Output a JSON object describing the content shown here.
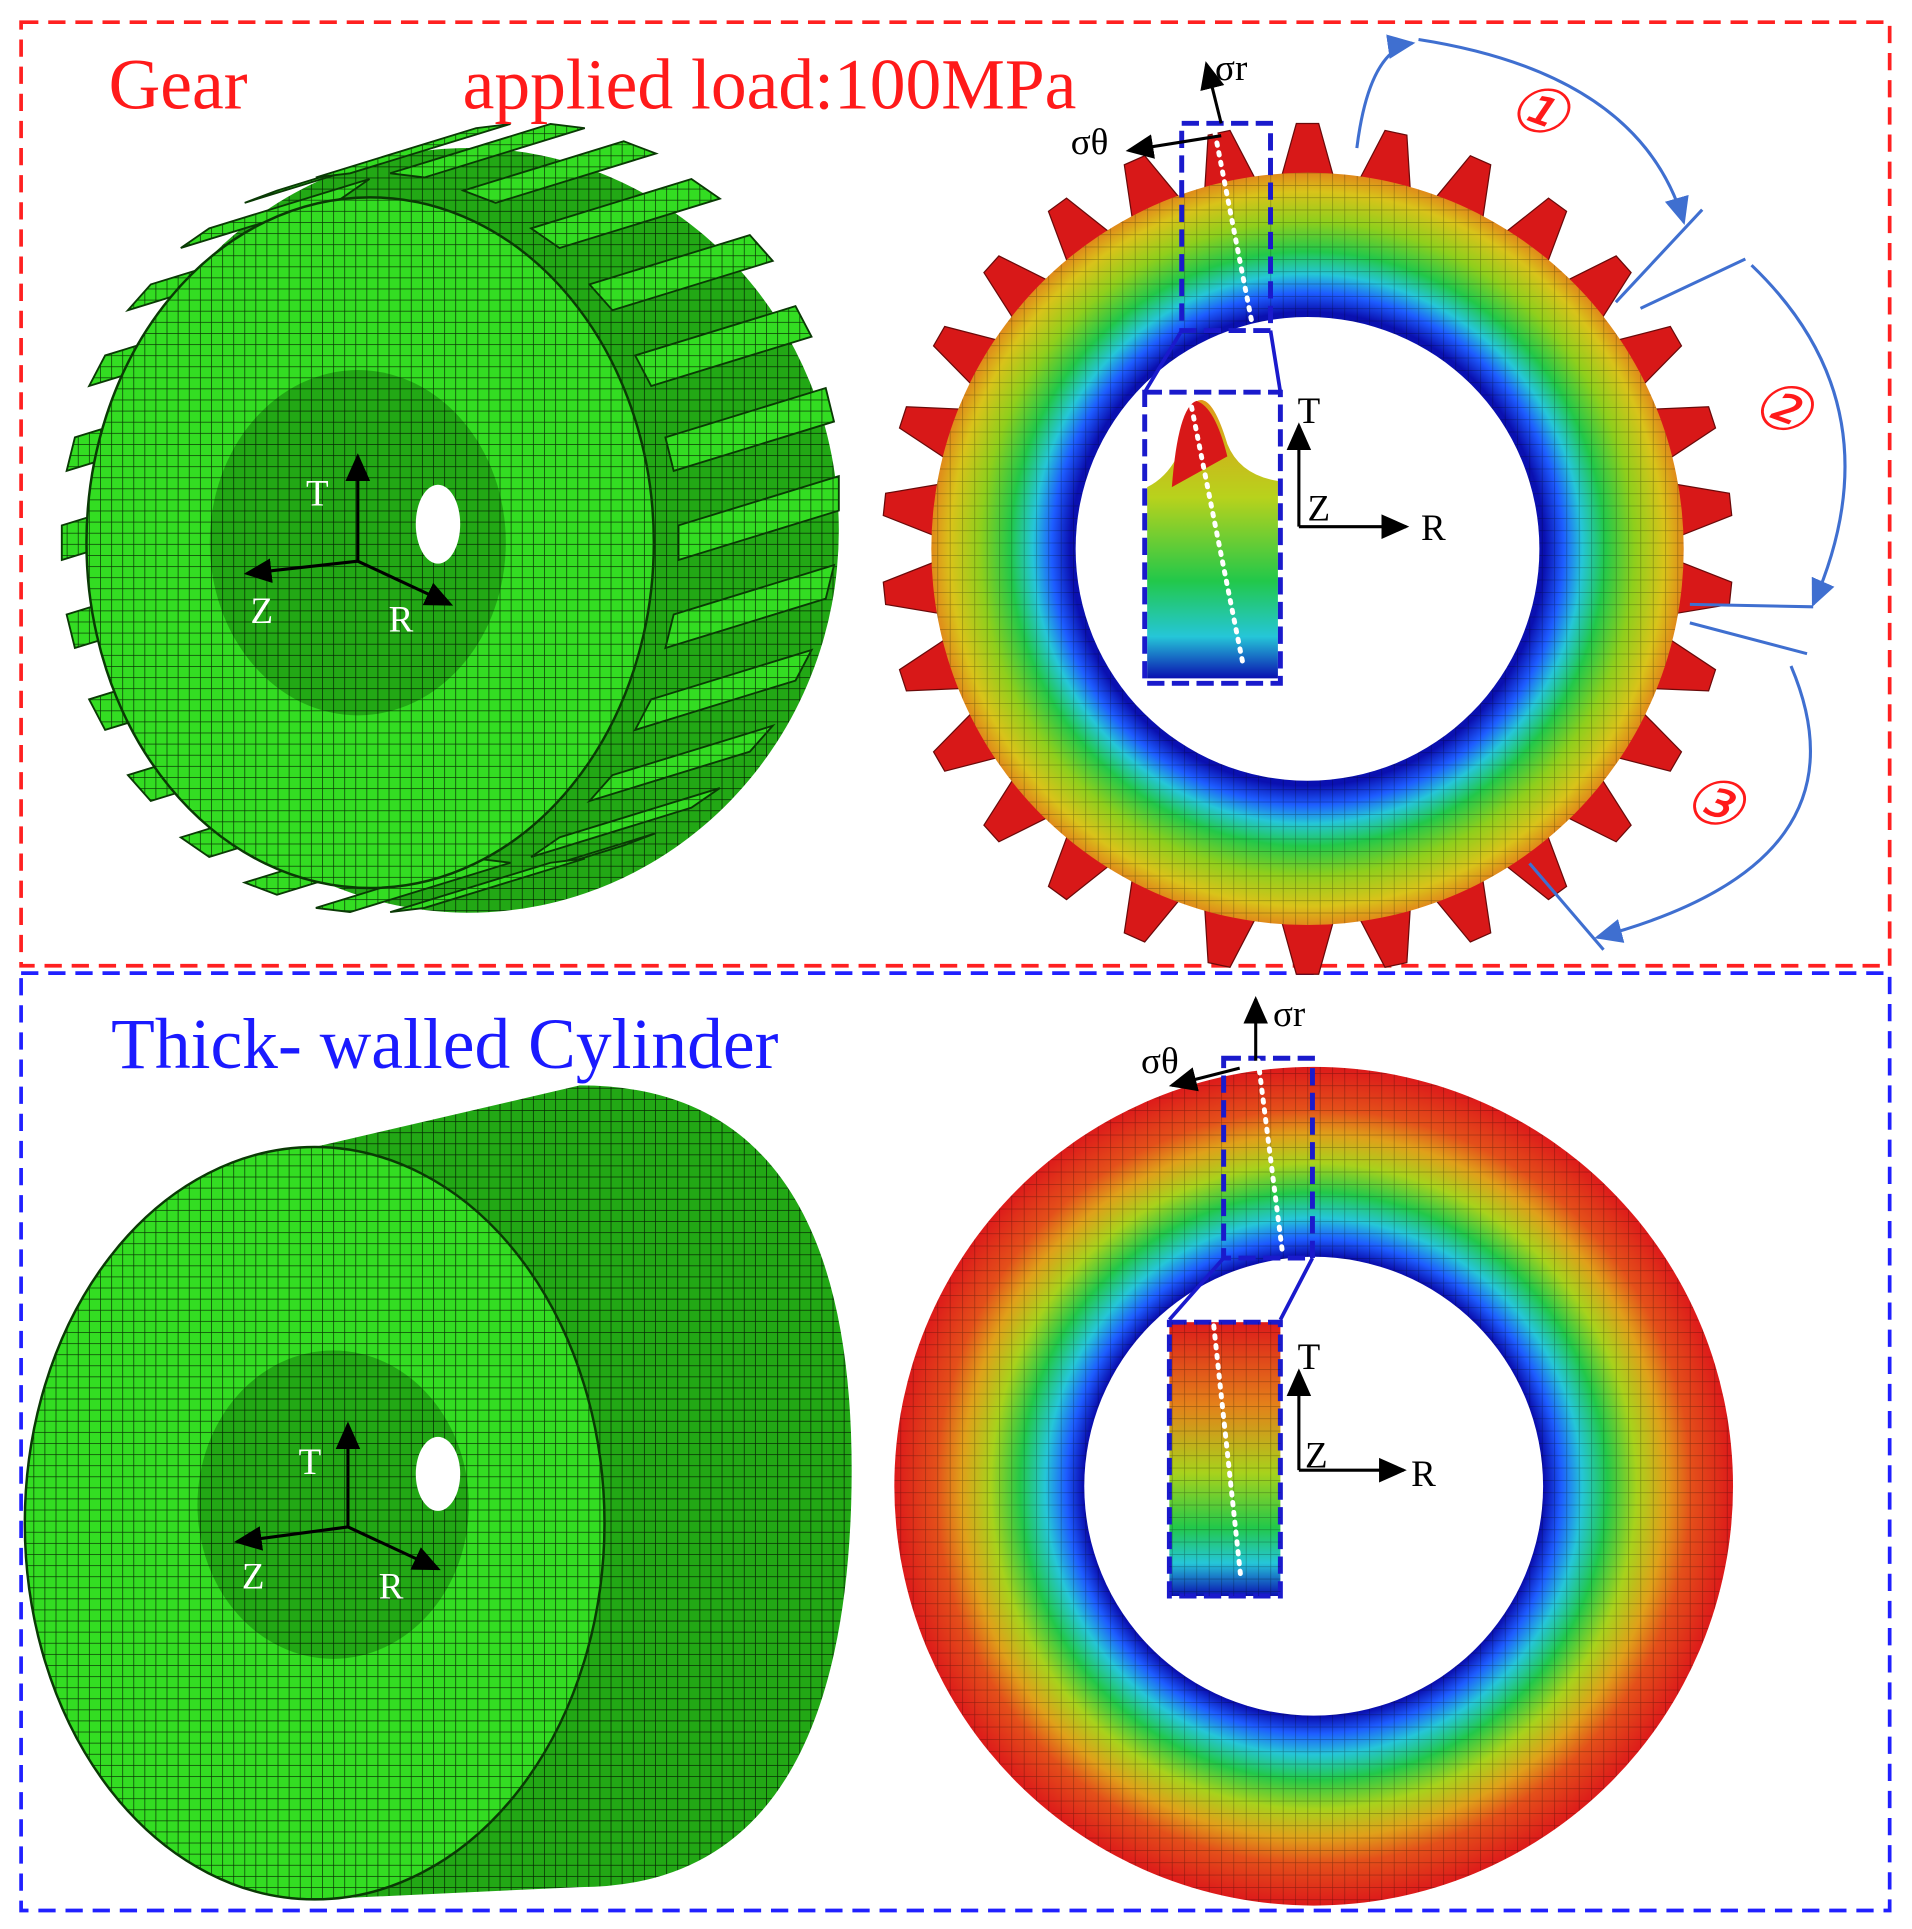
{
  "gear": {
    "title": "Gear",
    "load": "applied load:100MPa",
    "model_axes": {
      "t": "T",
      "z": "Z",
      "r": "R"
    },
    "stress_axes": {
      "radial": "σr",
      "hoop": "σθ"
    },
    "inset_axes": {
      "t": "T",
      "z": "Z",
      "r": "R"
    },
    "regions": [
      "①",
      "②",
      "③"
    ]
  },
  "cylinder": {
    "title": "Thick-  walled Cylinder",
    "model_axes": {
      "t": "T",
      "z": "Z",
      "r": "R"
    },
    "stress_axes": {
      "radial": "σr",
      "hoop": "σθ"
    },
    "inset_axes": {
      "t": "T",
      "z": "Z",
      "r": "R"
    }
  }
}
